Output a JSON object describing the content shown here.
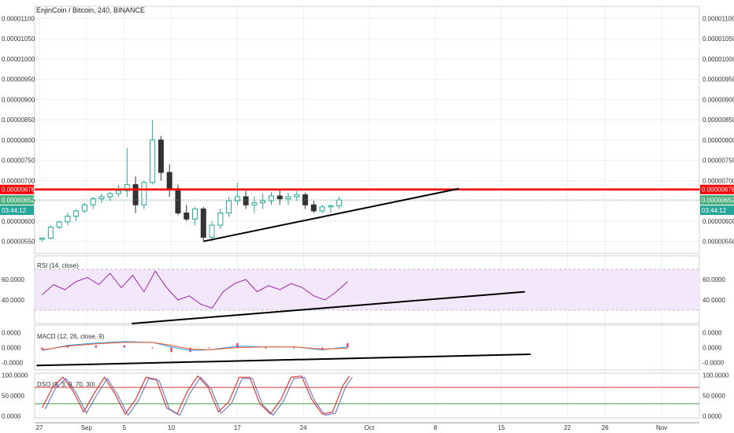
{
  "header": {
    "title": "EnjinCoin / Bitcoin, 240, BINANCE"
  },
  "x_axis": {
    "ticks": [
      {
        "label": "27",
        "day": 0
      },
      {
        "label": "Sep",
        "day": 5
      },
      {
        "label": "5",
        "day": 9
      },
      {
        "label": "10",
        "day": 14
      },
      {
        "label": "17",
        "day": 21
      },
      {
        "label": "24",
        "day": 28
      },
      {
        "label": "Oct",
        "day": 35
      },
      {
        "label": "8",
        "day": 42
      },
      {
        "label": "15",
        "day": 49
      },
      {
        "label": "22",
        "day": 56
      },
      {
        "label": "26",
        "day": 60
      },
      {
        "label": "Nov",
        "day": 66
      }
    ]
  },
  "price_panel": {
    "ticks": [
      "0.00001100",
      "0.00001050",
      "0.00001000",
      "0.00000950",
      "0.00000900",
      "0.00000850",
      "0.00000800",
      "0.00000750",
      "0.00000700",
      "0.00000650",
      "0.00000600",
      "0.00000550"
    ],
    "tick_values": [
      1.1e-05,
      1.05e-05,
      1e-05,
      9.5e-06,
      9e-06,
      8.5e-06,
      8e-06,
      7.5e-06,
      7e-06,
      6.5e-06,
      6e-06,
      5.5e-06
    ],
    "ylim": [
      5.2e-06,
      1.13e-05
    ],
    "resistance_value": 6.78e-06,
    "resistance_label": "0.00000678",
    "last_value": 6.52e-06,
    "last_label": "0.00000652",
    "countdown": "03:44:12",
    "colors": {
      "up": "#26a69a",
      "down": "#333333",
      "resistance": "#ff0000",
      "last": "#4caf7d",
      "countdown": "#26a69a"
    }
  },
  "rsi_panel": {
    "legend": "RSI (14, close)",
    "ticks": [
      "60.0000",
      "40.0000"
    ],
    "tick_values": [
      60,
      40
    ],
    "ylim": [
      17,
      83
    ],
    "bands": [
      70,
      30
    ],
    "fill": "#f3e8fb",
    "line_color": "#9c27b0"
  },
  "macd_panel": {
    "legend": "MACD (12, 26, close, 9)",
    "ticks": [
      "0.0000",
      "0.0000",
      "-0.0000"
    ],
    "tick_values": [
      2e-08,
      0,
      -2e-08
    ],
    "ylim": [
      -3e-08,
      3e-08
    ],
    "line_color": "#2196f3",
    "signal_color": "#ff5722",
    "hist_color": "#e91e63"
  },
  "stoch_panel": {
    "legend": "DSO (9, 3, 9, 70, 30)",
    "ticks": [
      "100.0000",
      "50.0000",
      "0.0000"
    ],
    "tick_values": [
      100,
      50,
      0
    ],
    "ylim": [
      -5,
      105
    ],
    "upper_band": 70,
    "lower_band": 30,
    "upper_color": "#e53935",
    "lower_color": "#43a047",
    "k_color": "#e53935",
    "d_color": "#5c6bc0"
  },
  "chart_data": {
    "type": "candlestick",
    "title": "EnjinCoin / Bitcoin, 240, BINANCE",
    "x_unit": "days since Aug 27",
    "candles": [
      [
        0.3,
        5.55e-06,
        5.6e-06,
        5.5e-06,
        5.58e-06
      ],
      [
        1.2,
        5.58e-06,
        5.9e-06,
        5.55e-06,
        5.85e-06
      ],
      [
        2.1,
        5.85e-06,
        6e-06,
        5.8e-06,
        5.98e-06
      ],
      [
        3.0,
        5.98e-06,
        6.2e-06,
        5.9e-06,
        6.12e-06
      ],
      [
        3.9,
        6.12e-06,
        6.3e-06,
        6e-06,
        6.25e-06
      ],
      [
        4.8,
        6.25e-06,
        6.45e-06,
        6.2e-06,
        6.4e-06
      ],
      [
        5.7,
        6.4e-06,
        6.6e-06,
        6.3e-06,
        6.55e-06
      ],
      [
        6.6,
        6.55e-06,
        6.68e-06,
        6.45e-06,
        6.6e-06
      ],
      [
        7.5,
        6.6e-06,
        6.72e-06,
        6.5e-06,
        6.68e-06
      ],
      [
        8.4,
        6.68e-06,
        6.9e-06,
        6.6e-06,
        6.75e-06
      ],
      [
        9.3,
        6.75e-06,
        7.8e-06,
        6.6e-06,
        6.9e-06
      ],
      [
        10.2,
        6.9e-06,
        7.1e-06,
        6.2e-06,
        6.4e-06
      ],
      [
        11.1,
        6.4e-06,
        7e-06,
        6.3e-06,
        6.95e-06
      ],
      [
        12.0,
        6.95e-06,
        8.5e-06,
        6.9e-06,
        8e-06
      ],
      [
        12.9,
        8e-06,
        8.1e-06,
        7e-06,
        7.2e-06
      ],
      [
        13.8,
        7.2e-06,
        7.4e-06,
        6.6e-06,
        6.8e-06
      ],
      [
        14.7,
        6.8e-06,
        6.9e-06,
        6.15e-06,
        6.2e-06
      ],
      [
        15.6,
        6.2e-06,
        6.4e-06,
        6e-06,
        6.05e-06
      ],
      [
        16.5,
        6.05e-06,
        6.35e-06,
        5.9e-06,
        6.3e-06
      ],
      [
        17.4,
        6.3e-06,
        6.35e-06,
        5.5e-06,
        5.6e-06
      ],
      [
        18.3,
        5.6e-06,
        6e-06,
        5.5e-06,
        5.9e-06
      ],
      [
        19.2,
        5.9e-06,
        6.3e-06,
        5.8e-06,
        6.2e-06
      ],
      [
        20.1,
        6.2e-06,
        6.6e-06,
        6.1e-06,
        6.5e-06
      ],
      [
        21.0,
        6.5e-06,
        6.95e-06,
        6.4e-06,
        6.6e-06
      ],
      [
        21.9,
        6.6e-06,
        6.75e-06,
        6.3e-06,
        6.4e-06
      ],
      [
        22.8,
        6.4e-06,
        6.6e-06,
        6.2e-06,
        6.45e-06
      ],
      [
        23.7,
        6.45e-06,
        6.68e-06,
        6.3e-06,
        6.5e-06
      ],
      [
        24.6,
        6.5e-06,
        6.72e-06,
        6.4e-06,
        6.62e-06
      ],
      [
        25.5,
        6.62e-06,
        6.8e-06,
        6.4e-06,
        6.55e-06
      ],
      [
        26.4,
        6.55e-06,
        6.7e-06,
        6.4e-06,
        6.6e-06
      ],
      [
        27.3,
        6.6e-06,
        6.75e-06,
        6.5e-06,
        6.65e-06
      ],
      [
        28.2,
        6.65e-06,
        6.7e-06,
        6.3e-06,
        6.4e-06
      ],
      [
        29.1,
        6.4e-06,
        6.5e-06,
        6.2e-06,
        6.25e-06
      ],
      [
        30.0,
        6.25e-06,
        6.4e-06,
        6.2e-06,
        6.35e-06
      ],
      [
        30.9,
        6.35e-06,
        6.4e-06,
        6.2e-06,
        6.38e-06
      ],
      [
        31.8,
        6.38e-06,
        6.6e-06,
        6.3e-06,
        6.52e-06
      ]
    ],
    "rsi": [
      [
        0.3,
        45
      ],
      [
        1.5,
        55
      ],
      [
        2.7,
        50
      ],
      [
        3.9,
        58
      ],
      [
        5.1,
        62
      ],
      [
        6.3,
        55
      ],
      [
        7.5,
        66
      ],
      [
        8.7,
        52
      ],
      [
        9.9,
        64
      ],
      [
        11.1,
        48
      ],
      [
        12.3,
        68
      ],
      [
        13.5,
        52
      ],
      [
        14.7,
        40
      ],
      [
        15.9,
        44
      ],
      [
        17.1,
        36
      ],
      [
        18.3,
        32
      ],
      [
        19.5,
        48
      ],
      [
        20.7,
        56
      ],
      [
        21.9,
        60
      ],
      [
        23.1,
        48
      ],
      [
        24.3,
        54
      ],
      [
        25.5,
        50
      ],
      [
        26.7,
        56
      ],
      [
        27.9,
        52
      ],
      [
        29.1,
        44
      ],
      [
        30.3,
        40
      ],
      [
        31.5,
        48
      ],
      [
        32.7,
        58
      ]
    ],
    "macd": [
      [
        0.3,
        -4e-09
      ],
      [
        3,
        3e-09
      ],
      [
        6,
        6e-09
      ],
      [
        9,
        8e-09
      ],
      [
        12,
        7e-09
      ],
      [
        14,
        1e-09
      ],
      [
        16,
        -4e-09
      ],
      [
        18,
        -3e-09
      ],
      [
        21,
        2e-09
      ],
      [
        24,
        1e-09
      ],
      [
        27,
        1e-09
      ],
      [
        30,
        -3e-09
      ],
      [
        32.7,
        1e-09
      ]
    ],
    "macd_signal": [
      [
        0.3,
        -3e-09
      ],
      [
        3,
        2e-09
      ],
      [
        6,
        5e-09
      ],
      [
        9,
        7e-09
      ],
      [
        12,
        7e-09
      ],
      [
        14,
        3e-09
      ],
      [
        16,
        -2e-09
      ],
      [
        18,
        -3e-09
      ],
      [
        21,
        0.0
      ],
      [
        24,
        1e-09
      ],
      [
        27,
        1e-09
      ],
      [
        30,
        -2e-09
      ],
      [
        32.7,
        -1e-09
      ]
    ],
    "stoch": [
      [
        0.3,
        20
      ],
      [
        1.4,
        70
      ],
      [
        2.5,
        95
      ],
      [
        3.6,
        60
      ],
      [
        4.7,
        10
      ],
      [
        5.8,
        55
      ],
      [
        6.9,
        95
      ],
      [
        8.0,
        55
      ],
      [
        9.1,
        5
      ],
      [
        10.2,
        40
      ],
      [
        11.3,
        95
      ],
      [
        12.4,
        90
      ],
      [
        13.5,
        20
      ],
      [
        14.6,
        5
      ],
      [
        15.7,
        60
      ],
      [
        16.8,
        98
      ],
      [
        17.9,
        70
      ],
      [
        19.0,
        10
      ],
      [
        20.1,
        35
      ],
      [
        21.2,
        95
      ],
      [
        22.3,
        95
      ],
      [
        23.4,
        30
      ],
      [
        24.5,
        5
      ],
      [
        25.6,
        40
      ],
      [
        26.7,
        95
      ],
      [
        27.8,
        98
      ],
      [
        28.9,
        40
      ],
      [
        30.0,
        5
      ],
      [
        31.1,
        10
      ],
      [
        32.2,
        75
      ],
      [
        32.9,
        98
      ]
    ],
    "trendlines": [
      {
        "panel": "price",
        "points": [
          [
            17.4,
            5.5e-06
          ],
          [
            44.5,
            6.8e-06
          ]
        ],
        "color": "#000000"
      },
      {
        "panel": "rsi",
        "points": [
          [
            9.8,
            17
          ],
          [
            51.5,
            48
          ]
        ],
        "color": "#000000"
      },
      {
        "panel": "macd",
        "points": [
          [
            -0.3,
            -2.4e-08
          ],
          [
            52.1,
            -9e-09
          ]
        ],
        "color": "#000000"
      }
    ],
    "xlim": [
      -0.5,
      70
    ]
  }
}
